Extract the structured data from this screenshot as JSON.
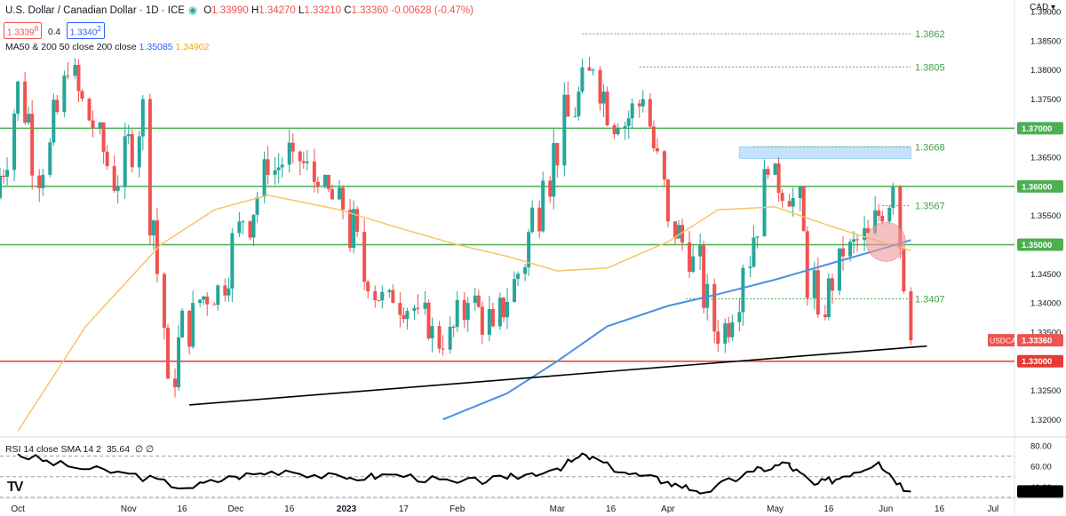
{
  "header": {
    "title": "U.S. Dollar / Canadian Dollar · 1D · ICE",
    "ohlc": [
      {
        "label": "O",
        "value": "1.33990"
      },
      {
        "label": "H",
        "value": "1.34270"
      },
      {
        "label": "L",
        "value": "1.33210"
      },
      {
        "label": "C",
        "value": "1.33360"
      }
    ],
    "change": "-0.00628 (-0.47%)",
    "bid": "1.3339",
    "bid_sup": "8",
    "spread": "0.4",
    "ask": "1.3340",
    "ask_sup": "2",
    "currency": "CAD"
  },
  "indicators": {
    "ma_label": "MA50 & 200 50 close 200 close",
    "ma200_value": "1.35085",
    "ma50_value": "1.34902",
    "rsi_label": "RSI 14 close SMA 14 2",
    "rsi_value": "35.64",
    "rsi_extra": "∅ ∅"
  },
  "colors": {
    "up": "#26a69a",
    "down": "#ef5350",
    "ma50": "#f7c565",
    "ma200": "#4a90e2",
    "level": "#4caf50",
    "support_red": "#e53935",
    "trendline": "#000000",
    "zone": "#bbdefb",
    "circle": "#ef9a9a",
    "rsi": "#000000"
  },
  "chart_data": {
    "type": "candlestick",
    "title": "U.S. Dollar / Canadian Dollar · 1D · ICE",
    "ylim": [
      1.317,
      1.392
    ],
    "y_ticks": [
      "1.39000",
      "1.38500",
      "1.38000",
      "1.37500",
      "1.37000",
      "1.36500",
      "1.36000",
      "1.35500",
      "1.35000",
      "1.34500",
      "1.34000",
      "1.33500",
      "1.33000",
      "1.32500",
      "1.32000"
    ],
    "x_ticks": [
      "Oct",
      "Nov",
      "16",
      "Dec",
      "16",
      "2023",
      "17",
      "Feb",
      "Mar",
      "16",
      "Apr",
      "May",
      "16",
      "Jun",
      "16",
      "Jul"
    ],
    "x_tick_dates": [
      "2022-10-01",
      "2022-11-01",
      "2022-11-16",
      "2022-12-01",
      "2022-12-16",
      "2023-01-01",
      "2023-01-17",
      "2023-02-01",
      "2023-03-01",
      "2023-03-16",
      "2023-04-01",
      "2023-05-01",
      "2023-05-16",
      "2023-06-01",
      "2023-06-16",
      "2023-07-01"
    ],
    "horizontal_levels": [
      {
        "value": 1.37,
        "label": "1.37000",
        "color": "#4caf50"
      },
      {
        "value": 1.36,
        "label": "1.36000",
        "color": "#4caf50"
      },
      {
        "value": 1.35,
        "label": "1.35000",
        "color": "#4caf50"
      },
      {
        "value": 1.33,
        "label": "1.33000",
        "color": "#e53935"
      }
    ],
    "dotted_levels": [
      {
        "value": 1.3862,
        "label": "1.3862",
        "from": "2023-03-08"
      },
      {
        "value": 1.3805,
        "label": "1.3805",
        "from": "2023-03-24"
      },
      {
        "value": 1.3668,
        "label": "1.3668",
        "from": "2023-04-25"
      },
      {
        "value": 1.3567,
        "label": "1.3567",
        "from": "2023-05-31"
      },
      {
        "value": 1.3407,
        "label": "1.3407",
        "from": "2023-04-06"
      }
    ],
    "resistance_zone": {
      "from": "2023-04-21",
      "to": "2023-06-08",
      "low": 1.3648,
      "high": 1.3668
    },
    "trendline": [
      {
        "x": "2022-11-18",
        "y": 1.3225
      },
      {
        "x": "2023-06-08",
        "y": 1.3326
      }
    ],
    "highlight_circle": {
      "x": "2023-06-01",
      "y": 1.3505
    },
    "last_price_label": {
      "symbol": "USDCAD",
      "value": "1.33360"
    },
    "ohlc_weekly": [
      {
        "x": "2022-09-26",
        "o": 1.358,
        "h": 1.384,
        "l": 1.35,
        "c": 1.378
      },
      {
        "x": "2022-10-03",
        "o": 1.378,
        "h": 1.385,
        "l": 1.356,
        "c": 1.362
      },
      {
        "x": "2022-10-10",
        "o": 1.362,
        "h": 1.385,
        "l": 1.36,
        "c": 1.379
      },
      {
        "x": "2022-10-17",
        "o": 1.379,
        "h": 1.384,
        "l": 1.365,
        "c": 1.37
      },
      {
        "x": "2022-10-24",
        "o": 1.37,
        "h": 1.371,
        "l": 1.35,
        "c": 1.36
      },
      {
        "x": "2022-10-31",
        "o": 1.36,
        "h": 1.38,
        "l": 1.356,
        "c": 1.375
      },
      {
        "x": "2022-11-07",
        "o": 1.375,
        "h": 1.379,
        "l": 1.323,
        "c": 1.327
      },
      {
        "x": "2022-11-14",
        "o": 1.327,
        "h": 1.346,
        "l": 1.3225,
        "c": 1.34
      },
      {
        "x": "2022-11-21",
        "o": 1.34,
        "h": 1.35,
        "l": 1.335,
        "c": 1.343
      },
      {
        "x": "2022-11-28",
        "o": 1.343,
        "h": 1.358,
        "l": 1.338,
        "c": 1.354
      },
      {
        "x": "2022-12-05",
        "o": 1.354,
        "h": 1.368,
        "l": 1.347,
        "c": 1.362
      },
      {
        "x": "2022-12-12",
        "o": 1.362,
        "h": 1.37,
        "l": 1.354,
        "c": 1.366
      },
      {
        "x": "2022-12-19",
        "o": 1.366,
        "h": 1.37,
        "l": 1.355,
        "c": 1.36
      },
      {
        "x": "2022-12-26",
        "o": 1.36,
        "h": 1.362,
        "l": 1.349,
        "c": 1.356
      },
      {
        "x": "2023-01-02",
        "o": 1.356,
        "h": 1.368,
        "l": 1.34,
        "c": 1.342
      },
      {
        "x": "2023-01-09",
        "o": 1.342,
        "h": 1.345,
        "l": 1.336,
        "c": 1.34
      },
      {
        "x": "2023-01-16",
        "o": 1.34,
        "h": 1.345,
        "l": 1.335,
        "c": 1.339
      },
      {
        "x": "2023-01-23",
        "o": 1.339,
        "h": 1.342,
        "l": 1.331,
        "c": 1.332
      },
      {
        "x": "2023-01-30",
        "o": 1.332,
        "h": 1.342,
        "l": 1.326,
        "c": 1.34
      },
      {
        "x": "2023-02-06",
        "o": 1.34,
        "h": 1.35,
        "l": 1.333,
        "c": 1.336
      },
      {
        "x": "2023-02-13",
        "o": 1.336,
        "h": 1.348,
        "l": 1.332,
        "c": 1.345
      },
      {
        "x": "2023-02-20",
        "o": 1.345,
        "h": 1.364,
        "l": 1.342,
        "c": 1.361
      },
      {
        "x": "2023-02-27",
        "o": 1.361,
        "h": 1.38,
        "l": 1.356,
        "c": 1.372
      },
      {
        "x": "2023-03-06",
        "o": 1.372,
        "h": 1.3862,
        "l": 1.37,
        "c": 1.38
      },
      {
        "x": "2023-03-13",
        "o": 1.38,
        "h": 1.382,
        "l": 1.365,
        "c": 1.37
      },
      {
        "x": "2023-03-20",
        "o": 1.37,
        "h": 1.3805,
        "l": 1.366,
        "c": 1.375
      },
      {
        "x": "2023-03-27",
        "o": 1.375,
        "h": 1.376,
        "l": 1.35,
        "c": 1.354
      },
      {
        "x": "2023-04-03",
        "o": 1.354,
        "h": 1.356,
        "l": 1.34,
        "c": 1.348
      },
      {
        "x": "2023-04-10",
        "o": 1.348,
        "h": 1.352,
        "l": 1.331,
        "c": 1.333
      },
      {
        "x": "2023-04-17",
        "o": 1.333,
        "h": 1.35,
        "l": 1.33,
        "c": 1.346
      },
      {
        "x": "2023-04-24",
        "o": 1.346,
        "h": 1.3668,
        "l": 1.344,
        "c": 1.362
      },
      {
        "x": "2023-05-01",
        "o": 1.362,
        "h": 1.365,
        "l": 1.354,
        "c": 1.358
      },
      {
        "x": "2023-05-08",
        "o": 1.358,
        "h": 1.36,
        "l": 1.332,
        "c": 1.338
      },
      {
        "x": "2023-05-15",
        "o": 1.338,
        "h": 1.352,
        "l": 1.337,
        "c": 1.348
      },
      {
        "x": "2023-05-22",
        "o": 1.348,
        "h": 1.356,
        "l": 1.343,
        "c": 1.352
      },
      {
        "x": "2023-05-29",
        "o": 1.352,
        "h": 1.366,
        "l": 1.35,
        "c": 1.36
      },
      {
        "x": "2023-06-05",
        "o": 1.36,
        "h": 1.361,
        "l": 1.34,
        "c": 1.342
      },
      {
        "x": "2023-06-08",
        "o": 1.342,
        "h": 1.3427,
        "l": 1.3321,
        "c": 1.3336
      }
    ],
    "series": [
      {
        "name": "MA50",
        "x": [
          "2022-10-01",
          "2022-10-20",
          "2022-11-10",
          "2022-11-25",
          "2022-12-10",
          "2022-12-30",
          "2023-01-15",
          "2023-02-01",
          "2023-02-15",
          "2023-03-01",
          "2023-03-15",
          "2023-04-01",
          "2023-04-15",
          "2023-05-01",
          "2023-05-15",
          "2023-06-01",
          "2023-06-08"
        ],
        "values": [
          1.318,
          1.336,
          1.35,
          1.356,
          1.3585,
          1.356,
          1.353,
          1.35,
          1.348,
          1.3455,
          1.346,
          1.3505,
          1.356,
          1.3565,
          1.3535,
          1.3502,
          1.349
        ]
      },
      {
        "name": "MA200",
        "x": [
          "2023-01-28",
          "2023-02-15",
          "2023-03-01",
          "2023-03-15",
          "2023-04-01",
          "2023-04-15",
          "2023-05-01",
          "2023-05-15",
          "2023-06-01",
          "2023-06-08"
        ],
        "values": [
          1.32,
          1.3245,
          1.33,
          1.336,
          1.3395,
          1.3415,
          1.344,
          1.3465,
          1.3495,
          1.3508
        ]
      }
    ],
    "rsi": {
      "ylim": [
        30,
        85
      ],
      "y_ticks": [
        "80.00",
        "60.00",
        "40.00"
      ],
      "levels": [
        70,
        50,
        30
      ],
      "x": [
        "2022-10-01",
        "2022-10-15",
        "2022-11-01",
        "2022-11-18",
        "2022-12-01",
        "2022-12-15",
        "2023-01-01",
        "2023-01-15",
        "2023-02-01",
        "2023-02-15",
        "2023-03-01",
        "2023-03-09",
        "2023-03-20",
        "2023-04-01",
        "2023-04-12",
        "2023-04-25",
        "2023-05-05",
        "2023-05-12",
        "2023-05-20",
        "2023-05-30",
        "2023-06-08"
      ],
      "values": [
        72,
        60,
        53,
        39,
        50,
        56,
        48,
        52,
        44,
        48,
        58,
        71,
        54,
        45,
        35,
        55,
        63,
        42,
        50,
        64,
        35.64
      ]
    }
  }
}
